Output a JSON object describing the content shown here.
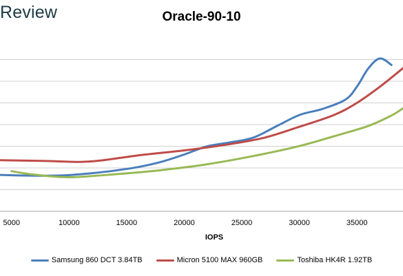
{
  "brand": {
    "text": "Review"
  },
  "chart_data": {
    "type": "line",
    "title": "Oracle-90-10",
    "xlabel": "IOPS",
    "ylabel": "",
    "xlim": [
      4000,
      39000
    ],
    "ylim": [
      0,
      8
    ],
    "x_ticks": [
      5000,
      10000,
      15000,
      20000,
      25000,
      30000,
      35000
    ],
    "grid": "horizontal",
    "legend_position": "bottom",
    "series": [
      {
        "name": "Samsung 860 DCT 3.84TB",
        "color": "#4a7ebb",
        "x": [
          4000,
          6000,
          8000,
          10000,
          12000,
          14000,
          16000,
          18000,
          20000,
          22000,
          24000,
          26000,
          28000,
          30000,
          32000,
          34000,
          35000,
          36000,
          37000,
          38000
        ],
        "y": [
          1.68,
          1.65,
          1.64,
          1.67,
          1.76,
          1.88,
          2.04,
          2.28,
          2.62,
          3.0,
          3.18,
          3.4,
          3.92,
          4.44,
          4.72,
          5.15,
          5.75,
          6.6,
          7.05,
          6.75
        ]
      },
      {
        "name": "Micron 5100 MAX 960GB",
        "color": "#be4b48",
        "x": [
          4000,
          8000,
          11000,
          13000,
          16000,
          20000,
          24000,
          27000,
          30000,
          33000,
          35000,
          37000,
          39000
        ],
        "y": [
          2.36,
          2.32,
          2.28,
          2.36,
          2.58,
          2.81,
          3.1,
          3.4,
          3.9,
          4.44,
          5.0,
          5.75,
          6.6
        ]
      },
      {
        "name": "Toshiba HK4R 1.92TB",
        "color": "#98b954",
        "x": [
          5000,
          7000,
          10000,
          14000,
          18000,
          22000,
          26000,
          30000,
          33000,
          36000,
          38000,
          39000
        ],
        "y": [
          1.85,
          1.69,
          1.57,
          1.71,
          1.9,
          2.17,
          2.55,
          3.01,
          3.46,
          3.94,
          4.42,
          4.75
        ]
      }
    ]
  }
}
